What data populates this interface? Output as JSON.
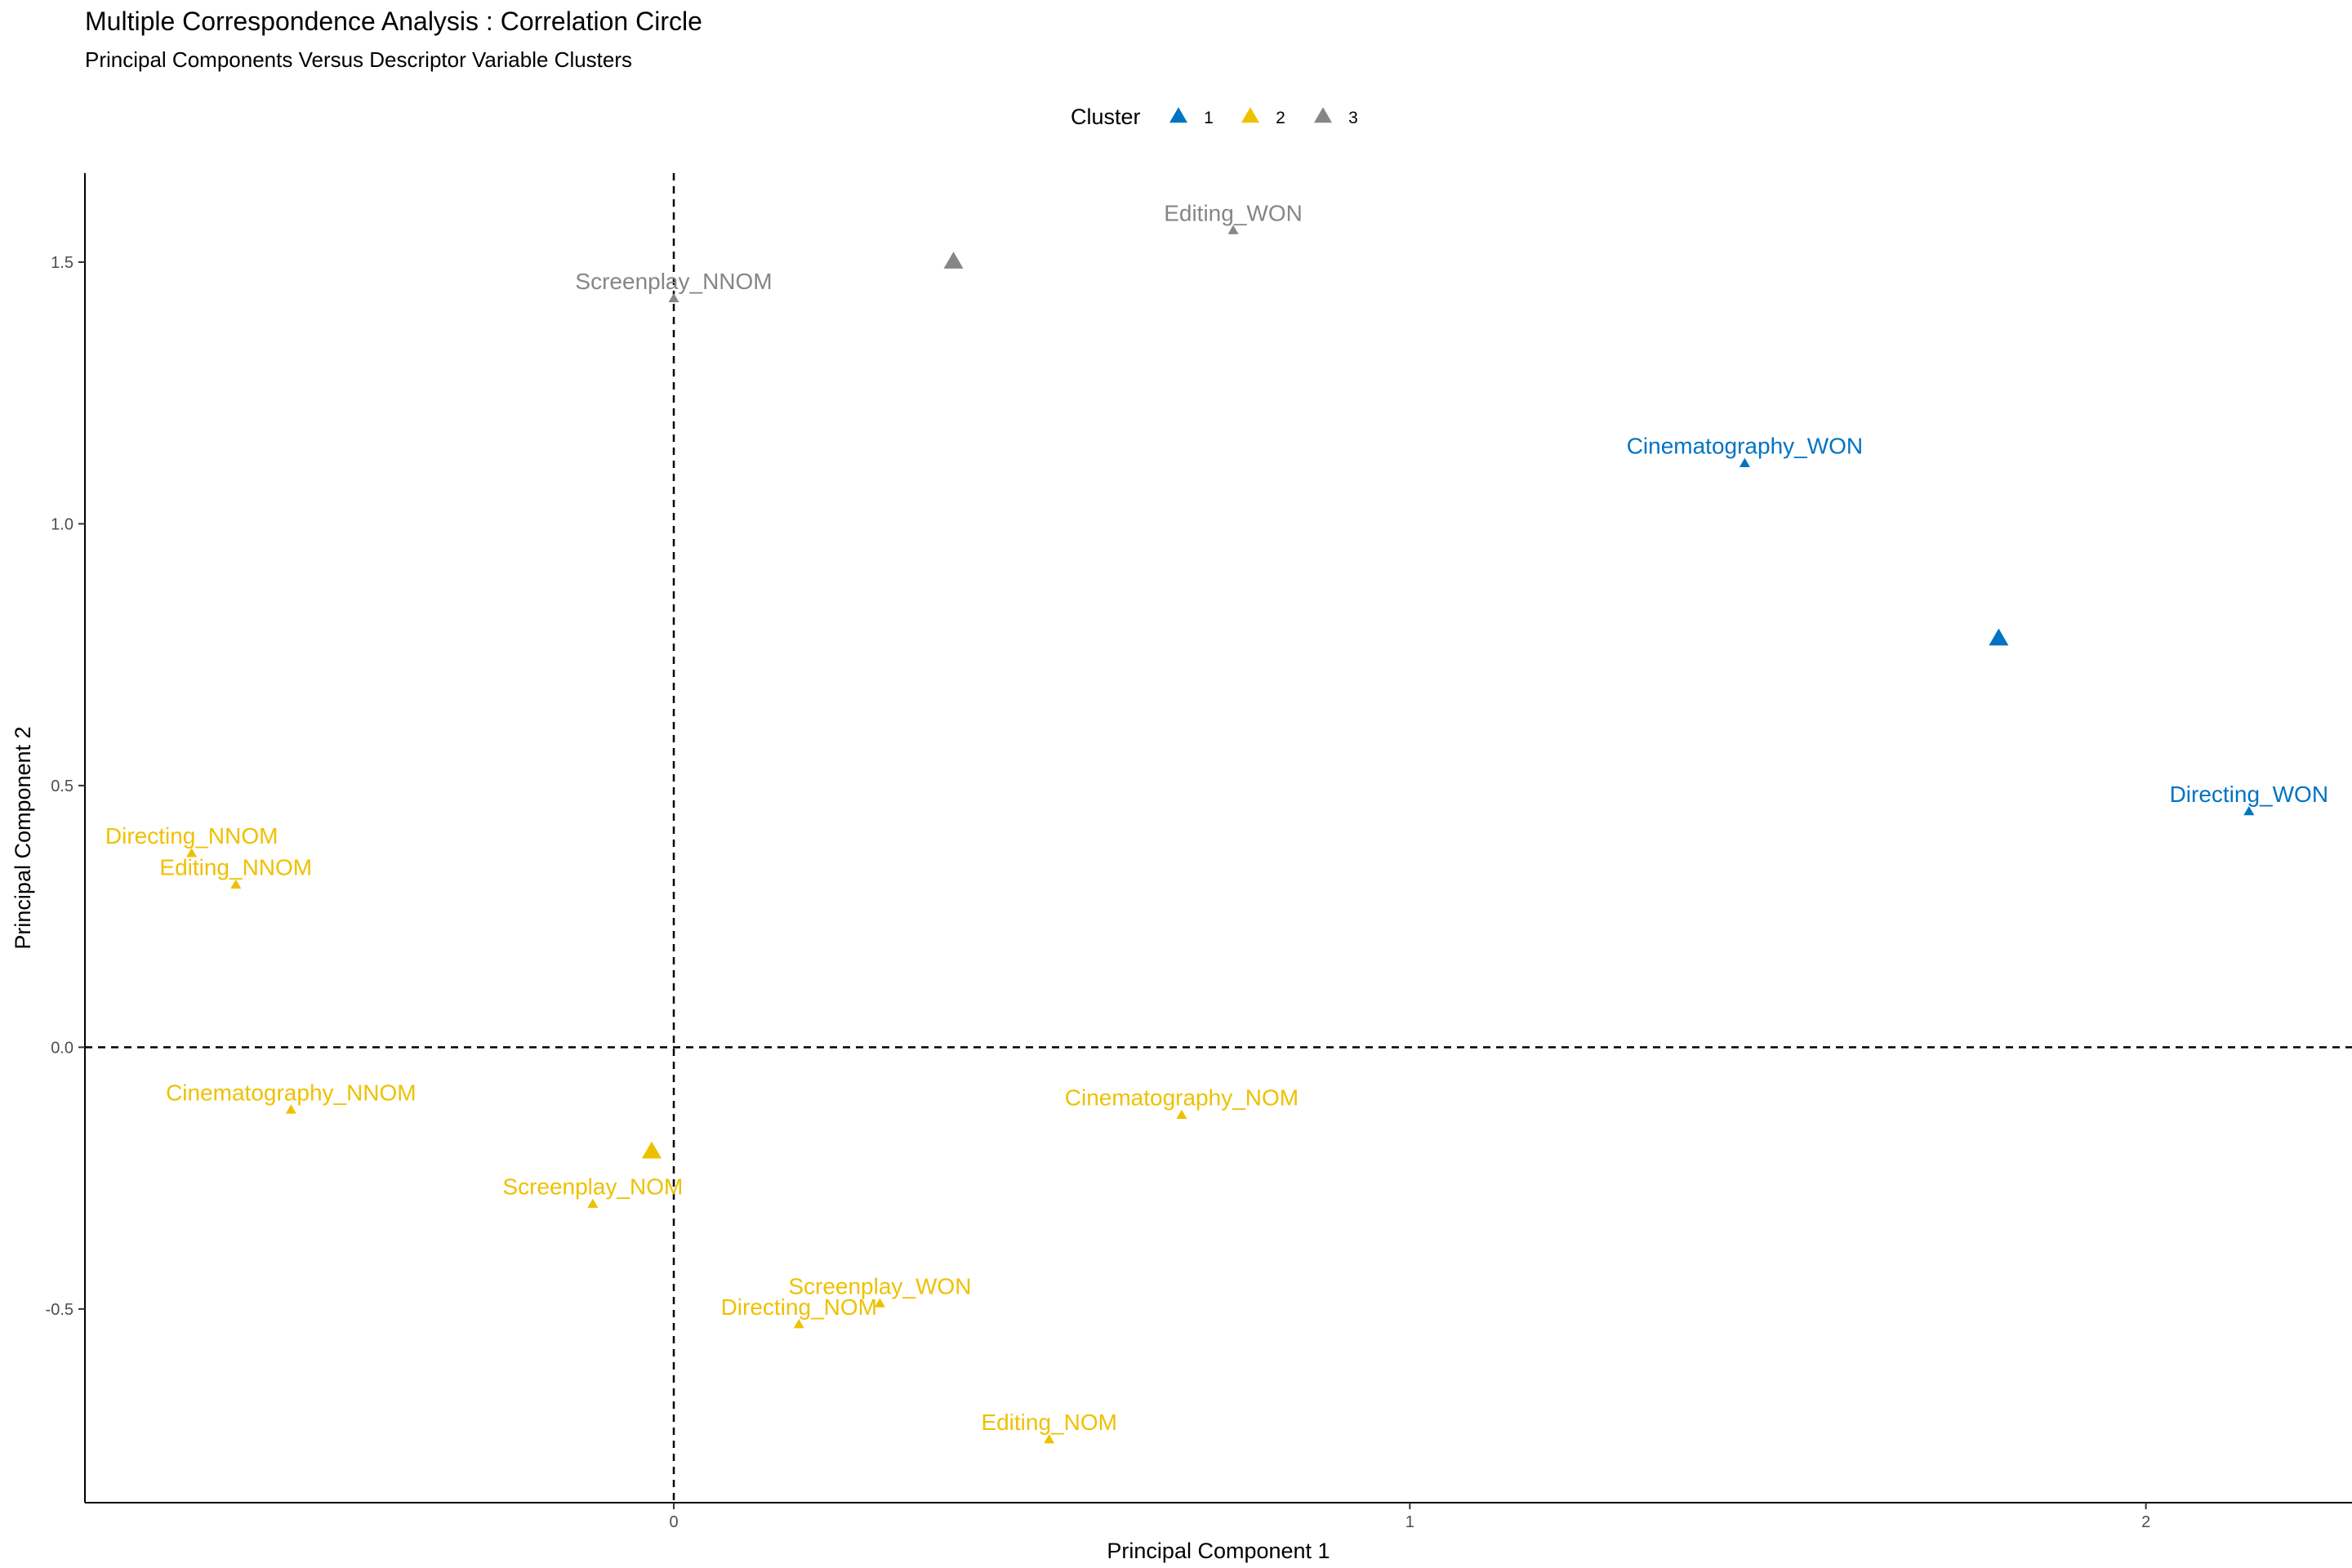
{
  "chart_data": {
    "type": "scatter",
    "title": "Multiple Correspondence Analysis : Correlation Circle",
    "subtitle": "Principal Components Versus Descriptor Variable Clusters",
    "xlabel": "Principal Component 1",
    "ylabel": "Principal Component 2",
    "xlim": [
      -0.8,
      2.28
    ],
    "ylim": [
      -0.87,
      1.67
    ],
    "x_ticks": [
      0,
      1,
      2
    ],
    "x_tick_labels": [
      "0",
      "1",
      "2"
    ],
    "y_ticks": [
      -0.5,
      0,
      0.5,
      1,
      1.5
    ],
    "y_tick_labels": [
      "-0.5",
      "0.0",
      "0.5",
      "1.0",
      "1.5"
    ],
    "reference_lines": {
      "x": 0,
      "y": 0,
      "style": "dashed"
    },
    "grid": false,
    "legend": {
      "title": "Cluster",
      "position": "top",
      "entries": [
        {
          "key": "1",
          "label": "1",
          "color": "#0073C2"
        },
        {
          "key": "2",
          "label": "2",
          "color": "#EFC000"
        },
        {
          "key": "3",
          "label": "3",
          "color": "#868686"
        }
      ]
    },
    "points": [
      {
        "label": "Editing_WON",
        "x": 0.76,
        "y": 1.56,
        "cluster": "3"
      },
      {
        "label": "Screenplay_NNOM",
        "x": 0.0,
        "y": 1.43,
        "cluster": "3"
      },
      {
        "label": "Cinematography_WON",
        "x": 1.455,
        "y": 1.115,
        "cluster": "1"
      },
      {
        "label": "Directing_WON",
        "x": 2.14,
        "y": 0.45,
        "cluster": "1"
      },
      {
        "label": "Directing_NNOM",
        "x": -0.655,
        "y": 0.37,
        "cluster": "2"
      },
      {
        "label": "Editing_NNOM",
        "x": -0.595,
        "y": 0.31,
        "cluster": "2"
      },
      {
        "label": "Cinematography_NNOM",
        "x": -0.52,
        "y": -0.12,
        "cluster": "2"
      },
      {
        "label": "Cinematography_NOM",
        "x": 0.69,
        "y": -0.13,
        "cluster": "2"
      },
      {
        "label": "Screenplay_NOM",
        "x": -0.11,
        "y": -0.3,
        "cluster": "2"
      },
      {
        "label": "Screenplay_WON",
        "x": 0.28,
        "y": -0.49,
        "cluster": "2"
      },
      {
        "label": "Directing_NOM",
        "x": 0.17,
        "y": -0.53,
        "cluster": "2"
      },
      {
        "label": "Editing_NOM",
        "x": 0.51,
        "y": -0.75,
        "cluster": "2"
      }
    ],
    "centroids": [
      {
        "cluster": "1",
        "x": 1.8,
        "y": 0.78
      },
      {
        "cluster": "2",
        "x": -0.03,
        "y": -0.2
      },
      {
        "cluster": "3",
        "x": 0.38,
        "y": 1.5
      }
    ]
  }
}
